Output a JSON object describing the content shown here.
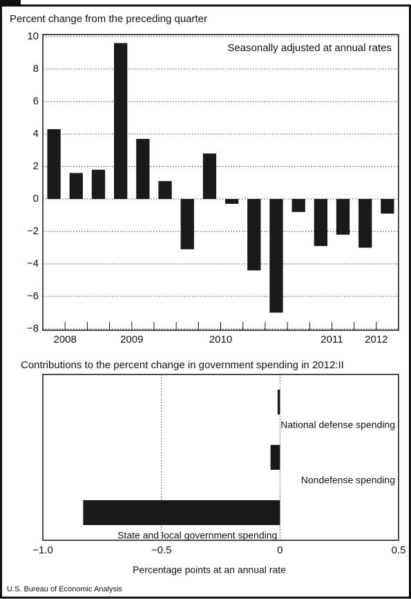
{
  "chart_data": [
    {
      "type": "bar",
      "title": "Percent change from the preceding quarter",
      "annotation": "Seasonally adjusted at annual rates",
      "categories": [
        "2008",
        null,
        null,
        "2009",
        null,
        null,
        null,
        "2010",
        null,
        null,
        null,
        null,
        "2011",
        null,
        "2012",
        null
      ],
      "values": [
        4.3,
        1.6,
        1.8,
        9.6,
        3.7,
        1.1,
        -3.1,
        2.8,
        -0.3,
        -4.4,
        -7.0,
        -0.8,
        -2.9,
        -2.2,
        -3.0,
        -0.9
      ],
      "color": "#1a1a1a",
      "ylim": [
        -8,
        10
      ],
      "yticks": [
        {
          "value": -8,
          "label": "−8"
        },
        {
          "value": -6,
          "label": "−6"
        },
        {
          "value": -4,
          "label": "−4"
        },
        {
          "value": -2,
          "label": "−2"
        },
        0,
        2,
        4,
        6,
        8,
        10
      ],
      "grid": true
    },
    {
      "type": "barh",
      "title": "Contributions to the percent change in government spending in 2012:II",
      "categories": [
        "National defense spending",
        "Nondefense spending",
        "State and local government spending"
      ],
      "values": [
        -0.01,
        -0.04,
        -0.83
      ],
      "color": "#1a1a1a",
      "xlim": [
        -1.0,
        0.5
      ],
      "xticks": [
        {
          "value": -1.0,
          "label": "−1.0"
        },
        {
          "value": -0.5,
          "label": "−0.5"
        },
        0,
        0.5
      ],
      "xlabel": "Percentage points at an annual rate",
      "grid": true
    }
  ],
  "source": "U.S. Bureau of Economic Analysis"
}
